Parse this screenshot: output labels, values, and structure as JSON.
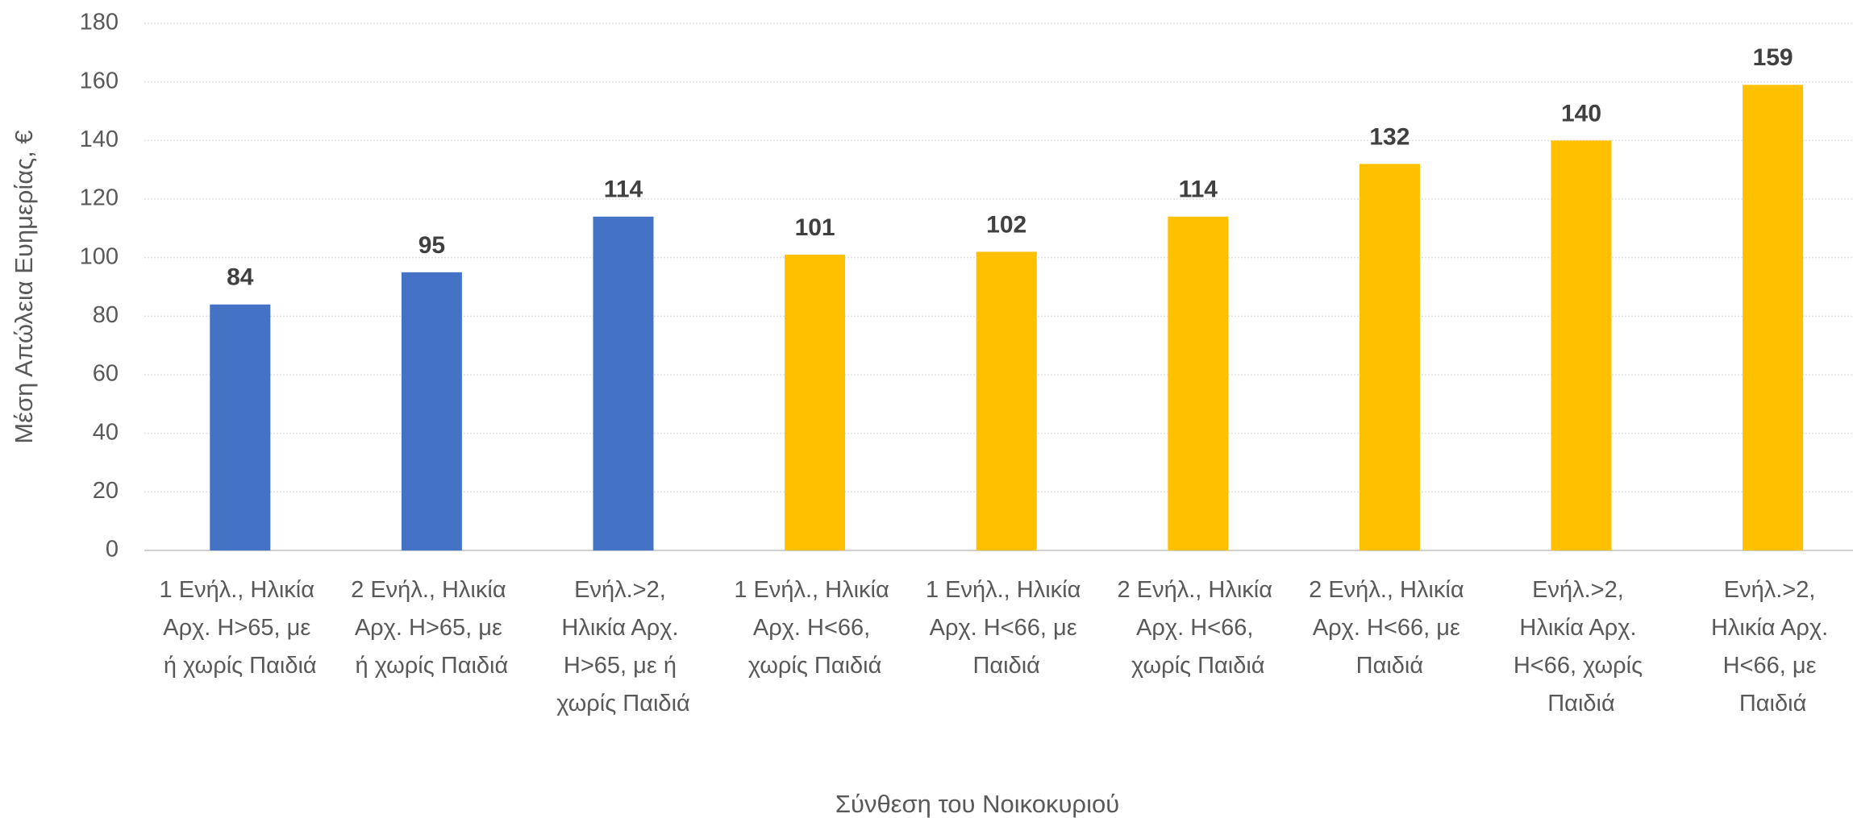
{
  "chart_data": {
    "type": "bar",
    "x_label": "Σύνθεση του Νοικοκυριού",
    "y_label": "Μέση Απώλεια Ευημερίας, €",
    "categories": [
      "1 Ενήλ., Ηλικία Αρχ. Η>65, με ή χωρίς Παιδιά",
      "2 Ενήλ., Ηλικία Αρχ. Η>65, με ή χωρίς Παιδιά",
      "Ενήλ.>2, Ηλικία Αρχ. Η>65, με ή χωρίς Παιδιά",
      "1 Ενήλ., Ηλικία Αρχ. Η<66, χωρίς Παιδιά",
      "1 Ενήλ., Ηλικία Αρχ. Η<66, με Παιδιά",
      "2 Ενήλ., Ηλικία Αρχ. Η<66, χωρίς Παιδιά",
      "2 Ενήλ., Ηλικία Αρχ. Η<66, με Παιδιά",
      "Ενήλ.>2, Ηλικία Αρχ. Η<66, χωρίς Παιδιά",
      "Ενήλ.>2, Ηλικία Αρχ. Η<66, με Παιδιά"
    ],
    "values": [
      84,
      95,
      114,
      101,
      102,
      114,
      132,
      140,
      159
    ],
    "colors": [
      "#4472c4",
      "#4472c4",
      "#4472c4",
      "#ffc000",
      "#ffc000",
      "#ffc000",
      "#ffc000",
      "#ffc000",
      "#ffc000"
    ],
    "ylim": [
      0,
      180
    ],
    "yticks": [
      0,
      20,
      40,
      60,
      80,
      100,
      120,
      140,
      160,
      180
    ],
    "grid": true
  }
}
